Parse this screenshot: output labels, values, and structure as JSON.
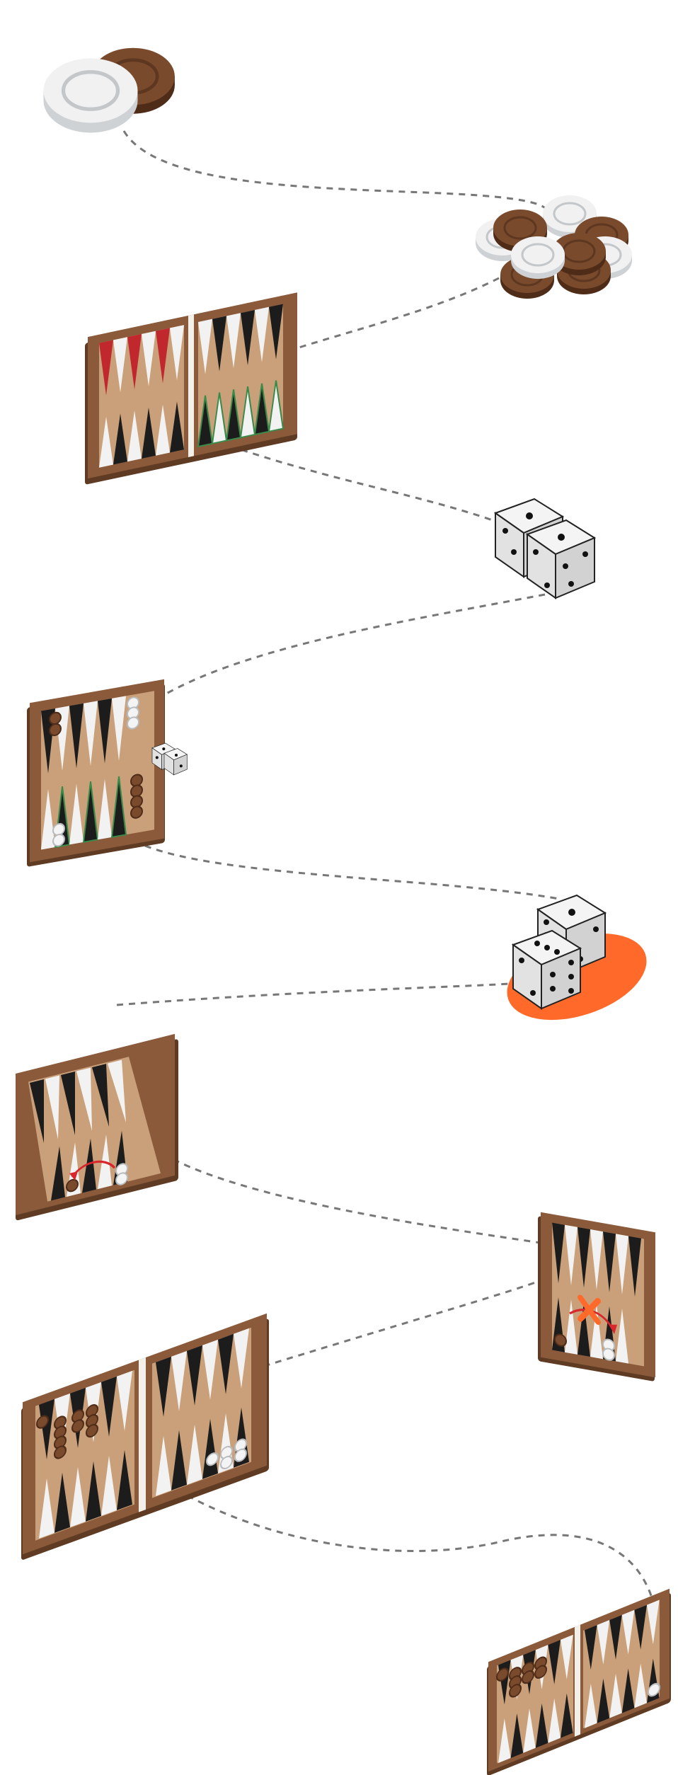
{
  "colors": {
    "background": "#ffffff",
    "board_frame": "#8a5a3a",
    "board_frame_dark": "#5e3b22",
    "board_field": "#c9a07a",
    "point_dark": "#1c1c1c",
    "point_light": "#f2f2f2",
    "point_red": "#c0282d",
    "point_green": "#3a8a4a",
    "checker_brown": "#7a4a2c",
    "checker_brown_side": "#4e2c18",
    "checker_white": "#f1f1f1",
    "checker_white_side": "#cfd2d5",
    "die_face": "#f4f4f4",
    "die_side": "#cfcfcf",
    "pip": "#111111",
    "highlight_orange": "#ff6a2a",
    "move_arrow": "#d9262c",
    "path_dashes": "#777777"
  },
  "icons": [
    "checker-pair-icon",
    "checker-pile-icon",
    "board-colored-points-icon",
    "dice-pair-icon",
    "board-starting-position-icon",
    "dice-on-highlight-icon",
    "board-move-arrow-icon",
    "board-blocked-move-icon",
    "board-full-position-icon",
    "board-bearing-off-icon"
  ]
}
